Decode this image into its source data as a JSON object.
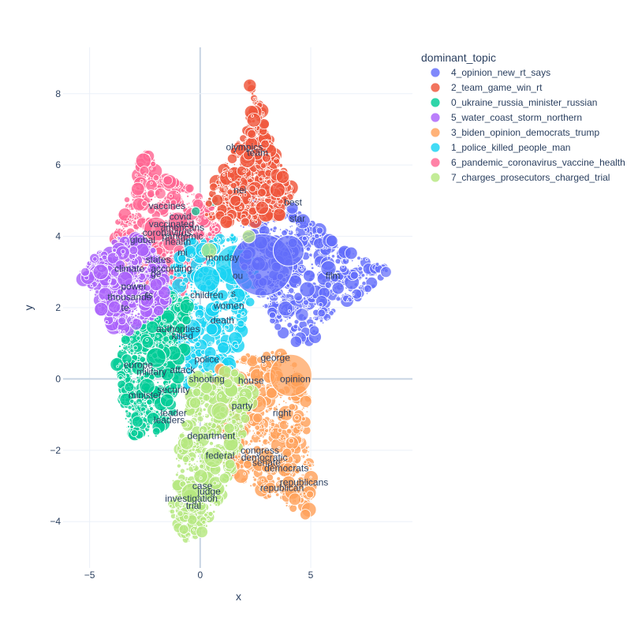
{
  "chart_data": {
    "type": "scatter",
    "title": "",
    "xlabel": "x",
    "ylabel": "y",
    "xlim": [
      -6.2,
      9.6
    ],
    "ylim": [
      -5.3,
      9.3
    ],
    "xticks": [
      -5,
      0,
      5
    ],
    "yticks": [
      -4,
      -2,
      0,
      2,
      4,
      6,
      8
    ],
    "grid": true,
    "legend": {
      "title": "dominant_topic",
      "placement": "right"
    },
    "series": [
      {
        "name": "4_opinion_new_rt_says",
        "color": "#636efa",
        "region": [
          [
            1.8,
            5.0
          ],
          [
            3.6,
            5.1
          ],
          [
            5.0,
            4.4
          ],
          [
            6.4,
            3.7
          ],
          [
            8.5,
            3.1
          ],
          [
            7.6,
            2.4
          ],
          [
            6.1,
            2.0
          ],
          [
            5.3,
            1.1
          ],
          [
            4.4,
            0.8
          ],
          [
            3.3,
            1.6
          ],
          [
            2.6,
            2.3
          ],
          [
            1.8,
            3.3
          ]
        ],
        "big": [
          [
            2.8,
            3.2,
            1.4
          ],
          [
            4.0,
            3.6,
            0.7
          ],
          [
            5.8,
            3.1,
            0.35
          ],
          [
            8.4,
            3.0,
            0.25
          ],
          [
            4.6,
            1.8,
            0.3
          ]
        ]
      },
      {
        "name": "2_team_game_win_rt",
        "color": "#ef553b",
        "region": [
          [
            0.2,
            4.6
          ],
          [
            0.6,
            5.4
          ],
          [
            1.4,
            6.3
          ],
          [
            2.0,
            7.0
          ],
          [
            2.4,
            7.8
          ],
          [
            2.1,
            8.5
          ],
          [
            2.8,
            7.6
          ],
          [
            3.3,
            6.4
          ],
          [
            3.9,
            5.7
          ],
          [
            4.3,
            5.1
          ],
          [
            3.6,
            4.6
          ],
          [
            2.6,
            4.4
          ],
          [
            1.4,
            4.3
          ]
        ],
        "big": [
          [
            3.5,
            5.3,
            0.35
          ],
          [
            2.8,
            4.8,
            0.3
          ],
          [
            1.6,
            5.0,
            0.25
          ],
          [
            3.0,
            6.2,
            0.2
          ]
        ]
      },
      {
        "name": "0_ukraine_russia_minister_russian",
        "color": "#00cc96",
        "region": [
          [
            -3.5,
            1.3
          ],
          [
            -3.8,
            0.6
          ],
          [
            -3.6,
            -0.6
          ],
          [
            -3.2,
            -1.6
          ],
          [
            -2.0,
            -1.6
          ],
          [
            -1.2,
            -0.9
          ],
          [
            -0.9,
            0.2
          ],
          [
            -0.6,
            1.2
          ],
          [
            -0.4,
            2.2
          ],
          [
            -1.2,
            2.4
          ],
          [
            -2.3,
            2.0
          ]
        ],
        "big": [
          [
            -2.0,
            0.6,
            0.45
          ],
          [
            -2.4,
            -0.2,
            0.35
          ],
          [
            -1.5,
            -0.6,
            0.3
          ],
          [
            -2.8,
            0.3,
            0.3
          ],
          [
            0.6,
            5.0,
            0.25
          ],
          [
            -0.2,
            4.7,
            0.2
          ]
        ]
      },
      {
        "name": "5_water_coast_storm_northern",
        "color": "#ab63fa",
        "region": [
          [
            -5.5,
            3.0
          ],
          [
            -4.5,
            3.6
          ],
          [
            -3.5,
            4.1
          ],
          [
            -2.5,
            3.9
          ],
          [
            -1.5,
            3.2
          ],
          [
            -1.5,
            2.2
          ],
          [
            -2.3,
            1.6
          ],
          [
            -3.3,
            1.2
          ],
          [
            -4.3,
            1.6
          ],
          [
            -4.8,
            2.3
          ]
        ],
        "big": [
          [
            -4.5,
            3.0,
            0.35
          ],
          [
            -3.4,
            2.8,
            0.35
          ],
          [
            -2.4,
            2.2,
            0.3
          ],
          [
            -5.2,
            3.0,
            0.2
          ]
        ]
      },
      {
        "name": "3_biden_opinion_democrats_trump",
        "color": "#ffa15a",
        "region": [
          [
            0.8,
            0.3
          ],
          [
            2.6,
            0.8
          ],
          [
            4.1,
            0.7
          ],
          [
            4.9,
            -0.4
          ],
          [
            4.8,
            -1.7
          ],
          [
            5.2,
            -2.6
          ],
          [
            5.0,
            -3.9
          ],
          [
            3.4,
            -3.4
          ],
          [
            1.9,
            -3.0
          ],
          [
            0.9,
            -2.3
          ],
          [
            0.5,
            -1.1
          ]
        ],
        "big": [
          [
            4.1,
            0.1,
            0.95
          ],
          [
            2.6,
            -0.7,
            0.4
          ],
          [
            1.8,
            0.0,
            0.35
          ],
          [
            3.0,
            -2.2,
            0.35
          ],
          [
            4.0,
            -2.9,
            0.3
          ]
        ]
      },
      {
        "name": "1_police_killed_people_man",
        "color": "#19d3f3",
        "region": [
          [
            -1.8,
            2.8
          ],
          [
            -0.4,
            3.9
          ],
          [
            1.6,
            4.1
          ],
          [
            2.8,
            3.4
          ],
          [
            2.4,
            2.4
          ],
          [
            1.8,
            1.2
          ],
          [
            1.4,
            0.0
          ],
          [
            0.6,
            -0.7
          ],
          [
            -0.6,
            -0.5
          ],
          [
            -1.4,
            0.5
          ],
          [
            -1.9,
            1.7
          ]
        ],
        "big": [
          [
            1.6,
            3.2,
            0.9
          ],
          [
            0.3,
            2.8,
            0.6
          ],
          [
            -0.4,
            1.4,
            0.45
          ],
          [
            0.5,
            0.4,
            0.4
          ],
          [
            -1.2,
            0.2,
            0.35
          ],
          [
            0.9,
            -0.1,
            0.3
          ]
        ]
      },
      {
        "name": "6_pandemic_coronavirus_vaccine_health",
        "color": "#ff6692",
        "region": [
          [
            -4.2,
            3.9
          ],
          [
            -3.2,
            5.2
          ],
          [
            -2.5,
            6.4
          ],
          [
            -1.6,
            5.6
          ],
          [
            -0.6,
            5.4
          ],
          [
            0.6,
            4.9
          ],
          [
            0.9,
            3.9
          ],
          [
            0.0,
            3.0
          ],
          [
            -1.0,
            2.4
          ],
          [
            -2.0,
            2.5
          ],
          [
            -3.2,
            3.0
          ]
        ],
        "big": [
          [
            -2.0,
            4.2,
            0.55
          ],
          [
            -1.0,
            4.4,
            0.45
          ],
          [
            -3.0,
            3.6,
            0.35
          ],
          [
            -0.6,
            3.5,
            0.3
          ],
          [
            -1.8,
            5.2,
            0.25
          ]
        ]
      },
      {
        "name": "7_charges_prosecutors_charged_trial",
        "color": "#b6e880",
        "region": [
          [
            -0.3,
            0.1
          ],
          [
            1.3,
            0.3
          ],
          [
            2.5,
            -0.3
          ],
          [
            2.1,
            -1.4
          ],
          [
            1.6,
            -2.5
          ],
          [
            1.0,
            -3.3
          ],
          [
            0.2,
            -4.3
          ],
          [
            -0.6,
            -4.6
          ],
          [
            -1.4,
            -3.8
          ],
          [
            -1.2,
            -2.6
          ],
          [
            -0.8,
            -1.3
          ]
        ],
        "big": [
          [
            -0.4,
            -3.2,
            0.45
          ],
          [
            0.6,
            -2.2,
            0.45
          ],
          [
            0.9,
            -0.9,
            0.4
          ],
          [
            0.4,
            3.6,
            0.35
          ],
          [
            2.2,
            4.0,
            0.3
          ],
          [
            -0.6,
            -1.8,
            0.3
          ]
        ]
      }
    ],
    "annotations": [
      {
        "text": "olympics",
        "x": 2.0,
        "y": 6.5
      },
      {
        "text": "team",
        "x": 2.6,
        "y": 6.35
      },
      {
        "text": "nei",
        "x": 1.8,
        "y": 5.3
      },
      {
        "text": "best",
        "x": 4.2,
        "y": 4.95
      },
      {
        "text": "star",
        "x": 4.4,
        "y": 4.5
      },
      {
        "text": "vaccines",
        "x": -1.5,
        "y": 4.85
      },
      {
        "text": "covid",
        "x": -0.9,
        "y": 4.55
      },
      {
        "text": "vaccinated",
        "x": -1.3,
        "y": 4.35
      },
      {
        "text": "americans",
        "x": -0.8,
        "y": 4.25
      },
      {
        "text": "coronavirus",
        "x": -1.5,
        "y": 4.1
      },
      {
        "text": "pandemic",
        "x": -0.8,
        "y": 4.0
      },
      {
        "text": "global",
        "x": -2.6,
        "y": 3.9
      },
      {
        "text": "health",
        "x": -1.0,
        "y": 3.85
      },
      {
        "text": "mi",
        "x": -0.8,
        "y": 3.55
      },
      {
        "text": "states",
        "x": -1.9,
        "y": 3.35
      },
      {
        "text": "monday",
        "x": 1.0,
        "y": 3.4
      },
      {
        "text": "climate",
        "x": -3.2,
        "y": 3.1
      },
      {
        "text": "according",
        "x": -1.3,
        "y": 3.1
      },
      {
        "text": "ge",
        "x": -2.0,
        "y": 2.95
      },
      {
        "text": "ou",
        "x": 1.7,
        "y": 2.9
      },
      {
        "text": "film",
        "x": 6.0,
        "y": 2.9
      },
      {
        "text": "power",
        "x": -3.0,
        "y": 2.6
      },
      {
        "text": "thousands",
        "x": -3.2,
        "y": 2.3
      },
      {
        "text": "ts",
        "x": -2.3,
        "y": 2.35
      },
      {
        "text": "children",
        "x": 0.3,
        "y": 2.35
      },
      {
        "text": "s",
        "x": 1.5,
        "y": 2.4
      },
      {
        "text": "women",
        "x": 1.3,
        "y": 2.05
      },
      {
        "text": "te",
        "x": -3.4,
        "y": 2.0
      },
      {
        "text": "death",
        "x": 1.0,
        "y": 1.65
      },
      {
        "text": "authorities",
        "x": -1.0,
        "y": 1.4
      },
      {
        "text": "killed",
        "x": -0.8,
        "y": 1.2
      },
      {
        "text": "george",
        "x": 3.4,
        "y": 0.6
      },
      {
        "text": "police",
        "x": 0.3,
        "y": 0.55
      },
      {
        "text": "europe",
        "x": -2.8,
        "y": 0.4
      },
      {
        "text": "military",
        "x": -2.2,
        "y": 0.2
      },
      {
        "text": "attack",
        "x": -0.8,
        "y": 0.25
      },
      {
        "text": "shooting",
        "x": 0.3,
        "y": 0.0
      },
      {
        "text": "opinion",
        "x": 4.3,
        "y": 0.0
      },
      {
        "text": "house",
        "x": 2.3,
        "y": -0.05
      },
      {
        "text": "security",
        "x": -1.2,
        "y": -0.3
      },
      {
        "text": "minister",
        "x": -2.5,
        "y": -0.45
      },
      {
        "text": "party",
        "x": 1.9,
        "y": -0.75
      },
      {
        "text": "leader",
        "x": -1.2,
        "y": -0.95
      },
      {
        "text": "right",
        "x": 3.7,
        "y": -0.95
      },
      {
        "text": "leaders",
        "x": -1.4,
        "y": -1.15
      },
      {
        "text": "department",
        "x": 0.5,
        "y": -1.6
      },
      {
        "text": "federal",
        "x": 0.9,
        "y": -2.15
      },
      {
        "text": "democratic",
        "x": 2.9,
        "y": -2.2
      },
      {
        "text": "congress",
        "x": 2.7,
        "y": -2.0
      },
      {
        "text": "senate",
        "x": 3.0,
        "y": -2.35
      },
      {
        "text": "democrats",
        "x": 3.9,
        "y": -2.5
      },
      {
        "text": "republicans",
        "x": 4.7,
        "y": -2.9
      },
      {
        "text": "republican",
        "x": 3.7,
        "y": -3.05
      },
      {
        "text": "case",
        "x": 0.1,
        "y": -3.0
      },
      {
        "text": "judge",
        "x": 0.4,
        "y": -3.15
      },
      {
        "text": "investigation",
        "x": -0.4,
        "y": -3.35
      },
      {
        "text": "trial",
        "x": -0.3,
        "y": -3.55
      }
    ]
  }
}
